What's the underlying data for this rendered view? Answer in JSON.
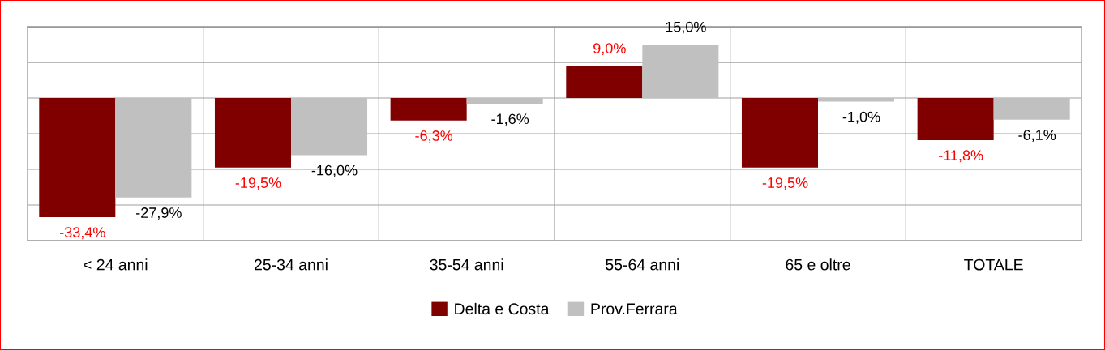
{
  "chart_data": {
    "type": "bar",
    "categories": [
      "< 24 anni",
      "25-34 anni",
      "35-54 anni",
      "55-64 anni",
      "65 e oltre",
      "TOTALE"
    ],
    "series": [
      {
        "name": "Delta e Costa",
        "color": "#800000",
        "values": [
          -33.4,
          -19.5,
          -6.3,
          9.0,
          -19.5,
          -11.8
        ],
        "value_labels": [
          "-33,4%",
          "-19,5%",
          "-6,3%",
          "9,0%",
          "-19,5%",
          "-11,8%"
        ]
      },
      {
        "name": "Prov.Ferrara",
        "color": "#c0c0c0",
        "values": [
          -27.9,
          -16.0,
          -1.6,
          15.0,
          -1.0,
          -6.1
        ],
        "value_labels": [
          "-27,9%",
          "-16,0%",
          "-1,6%",
          "15,0%",
          "-1,0%",
          "-6,1%"
        ]
      }
    ],
    "ylim": [
      -40,
      20
    ],
    "yticks": [
      {
        "value": -40,
        "label": null
      },
      {
        "value": -30,
        "label": null
      },
      {
        "value": -20,
        "label": null
      },
      {
        "value": -10,
        "label": null
      },
      {
        "value": 0,
        "label": null
      },
      {
        "value": 10,
        "label": null
      },
      {
        "value": 20,
        "label": null
      }
    ],
    "tick_labels": "x",
    "grid": true,
    "legend": "bottom"
  }
}
